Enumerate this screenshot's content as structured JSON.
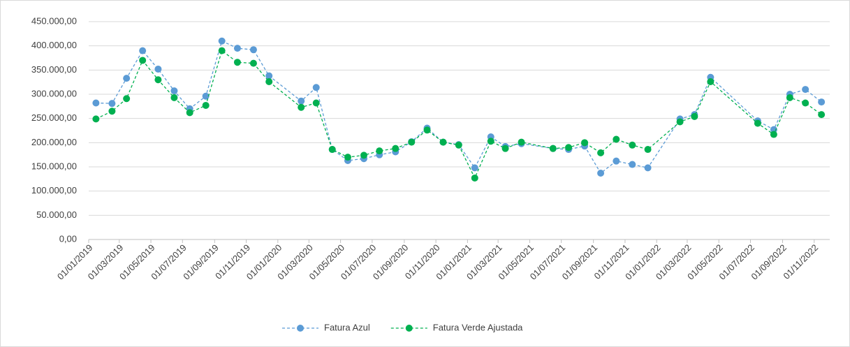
{
  "chart_data": {
    "type": "line",
    "x": [
      "2019-01-15",
      "2019-02-15",
      "2019-03-15",
      "2019-04-15",
      "2019-05-15",
      "2019-06-15",
      "2019-07-15",
      "2019-08-15",
      "2019-09-15",
      "2019-10-15",
      "2019-11-15",
      "2019-12-15",
      "2020-02-15",
      "2020-03-15",
      "2020-04-15",
      "2020-05-15",
      "2020-06-15",
      "2020-07-15",
      "2020-08-15",
      "2020-09-15",
      "2020-10-15",
      "2020-11-15",
      "2020-12-15",
      "2021-01-15",
      "2021-02-15",
      "2021-03-15",
      "2021-04-15",
      "2021-06-15",
      "2021-07-15",
      "2021-08-15",
      "2021-09-15",
      "2021-10-15",
      "2021-11-15",
      "2021-12-15",
      "2022-02-15",
      "2022-03-15",
      "2022-04-15",
      "2022-07-15",
      "2022-08-15",
      "2022-09-15",
      "2022-10-15",
      "2022-11-15"
    ],
    "series": [
      {
        "name": "Fatura Azul",
        "color": "#5b9bd5",
        "values": [
          282000,
          281000,
          333000,
          390000,
          352000,
          307000,
          270000,
          296000,
          410000,
          395000,
          392000,
          338000,
          286000,
          314000,
          186000,
          163000,
          167000,
          175000,
          181000,
          202000,
          230000,
          201000,
          196000,
          148000,
          212000,
          192000,
          198000,
          188000,
          186000,
          193000,
          137000,
          162000,
          155000,
          148000,
          249000,
          258000,
          335000,
          245000,
          227000,
          300000,
          310000,
          284000
        ]
      },
      {
        "name": "Fatura Verde Ajustada",
        "color": "#00b050",
        "values": [
          249000,
          265000,
          291000,
          370000,
          330000,
          293000,
          262000,
          277000,
          390000,
          366000,
          364000,
          326000,
          273000,
          282000,
          186000,
          170000,
          174000,
          183000,
          188000,
          201000,
          226000,
          201000,
          195000,
          127000,
          203000,
          188000,
          201000,
          188000,
          190000,
          200000,
          179000,
          207000,
          195000,
          186000,
          243000,
          254000,
          326000,
          240000,
          217000,
          293000,
          282000,
          258000
        ]
      }
    ],
    "xlim": [
      "2019-01-01",
      "2022-12-01"
    ],
    "xticks": [
      {
        "value": "2019-01-01",
        "label": "01/01/2019"
      },
      {
        "value": "2019-03-01",
        "label": "01/03/2019"
      },
      {
        "value": "2019-05-01",
        "label": "01/05/2019"
      },
      {
        "value": "2019-07-01",
        "label": "01/07/2019"
      },
      {
        "value": "2019-09-01",
        "label": "01/09/2019"
      },
      {
        "value": "2019-11-01",
        "label": "01/11/2019"
      },
      {
        "value": "2020-01-01",
        "label": "01/01/2020"
      },
      {
        "value": "2020-03-01",
        "label": "01/03/2020"
      },
      {
        "value": "2020-05-01",
        "label": "01/05/2020"
      },
      {
        "value": "2020-07-01",
        "label": "01/07/2020"
      },
      {
        "value": "2020-09-01",
        "label": "01/09/2020"
      },
      {
        "value": "2020-11-01",
        "label": "01/11/2020"
      },
      {
        "value": "2021-01-01",
        "label": "01/01/2021"
      },
      {
        "value": "2021-03-01",
        "label": "01/03/2021"
      },
      {
        "value": "2021-05-01",
        "label": "01/05/2021"
      },
      {
        "value": "2021-07-01",
        "label": "01/07/2021"
      },
      {
        "value": "2021-09-01",
        "label": "01/09/2021"
      },
      {
        "value": "2021-11-01",
        "label": "01/11/2021"
      },
      {
        "value": "2022-01-01",
        "label": "01/01/2022"
      },
      {
        "value": "2022-03-01",
        "label": "01/03/2022"
      },
      {
        "value": "2022-05-01",
        "label": "01/05/2022"
      },
      {
        "value": "2022-07-01",
        "label": "01/07/2022"
      },
      {
        "value": "2022-09-01",
        "label": "01/09/2022"
      },
      {
        "value": "2022-11-01",
        "label": "01/11/2022"
      }
    ],
    "ylim": [
      0,
      450000
    ],
    "yticks": [
      {
        "value": 0,
        "label": "0,00"
      },
      {
        "value": 50000,
        "label": "50.000,00"
      },
      {
        "value": 100000,
        "label": "100.000,00"
      },
      {
        "value": 150000,
        "label": "150.000,00"
      },
      {
        "value": 200000,
        "label": "200.000,00"
      },
      {
        "value": 250000,
        "label": "250.000,00"
      },
      {
        "value": 300000,
        "label": "300.000,00"
      },
      {
        "value": 350000,
        "label": "350.000,00"
      },
      {
        "value": 400000,
        "label": "400.000,00"
      },
      {
        "value": 450000,
        "label": "450.000,00"
      }
    ],
    "grid": true,
    "legend": "bottom"
  }
}
